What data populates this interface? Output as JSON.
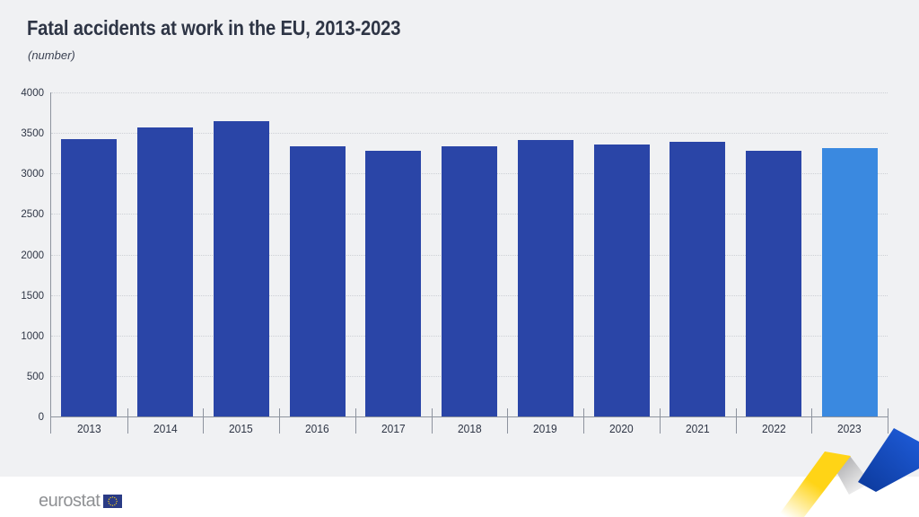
{
  "header": {
    "title": "Fatal accidents at work in the EU, 2013-2023",
    "subtitle": "(number)"
  },
  "chart_data": {
    "type": "bar",
    "title": "Fatal accidents at work in the EU, 2013-2023",
    "subtitle": "(number)",
    "xlabel": "",
    "ylabel": "(number)",
    "categories": [
      "2013",
      "2014",
      "2015",
      "2016",
      "2017",
      "2018",
      "2019",
      "2020",
      "2021",
      "2022",
      "2023"
    ],
    "values": [
      3420,
      3565,
      3650,
      3340,
      3280,
      3335,
      3410,
      3360,
      3390,
      3285,
      3310
    ],
    "ylim": [
      0,
      4000
    ],
    "yticks": [
      0,
      500,
      1000,
      1500,
      2000,
      2500,
      3000,
      3500,
      4000
    ],
    "grid": "horizontal-dotted",
    "legend": "none",
    "bar_color_default": "#2a45a7",
    "bar_color_highlight": "#3a89e0",
    "highlight_category": "2023"
  },
  "colors": {
    "page_background": "#f0f1f3",
    "footer_background": "#ffffff",
    "axis": "#8d939e",
    "gridline": "#cdd0d5",
    "text": "#2e3545",
    "logo_gray": "#8f9194",
    "flag_blue": "#2a3b85",
    "flag_stars": "#ffd617",
    "ribbon_yellow": "#ffd416",
    "ribbon_blue": "#1d59d4"
  },
  "footer": {
    "logo_text": "eurostat"
  }
}
